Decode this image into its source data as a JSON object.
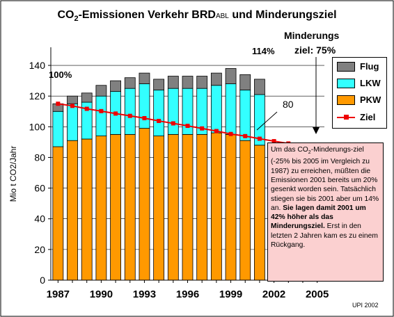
{
  "chart_data": {
    "type": "bar",
    "stacked": true,
    "title_pre": "CO",
    "title_sub": "2",
    "title_mid": "-Emissionen Verkehr BRD",
    "title_small": "ABL",
    "title_post": " und Minderungsziel",
    "ylabel": "Mio t CO2/Jahr",
    "ylim": [
      0,
      150
    ],
    "yticks": [
      "0",
      "20",
      "40",
      "60",
      "80",
      "100",
      "120",
      "140"
    ],
    "xticks": [
      "1987",
      "1990",
      "1993",
      "1996",
      "1999",
      "2002",
      "2005"
    ],
    "categories": [
      "1987",
      "1988",
      "1989",
      "1990",
      "1991",
      "1992",
      "1993",
      "1994",
      "1995",
      "1996",
      "1997",
      "1998",
      "1999",
      "2000",
      "2001"
    ],
    "series": [
      {
        "name": "PKW",
        "color": "#ff9900",
        "values": [
          87,
          91,
          92,
          94,
          95,
          95,
          99,
          94,
          95,
          95,
          95,
          96,
          95,
          91,
          88
        ]
      },
      {
        "name": "LKW",
        "color": "#33ffff",
        "values": [
          23,
          24,
          24,
          26,
          28,
          30,
          29,
          30,
          30,
          30,
          30,
          31,
          33,
          33,
          33
        ]
      },
      {
        "name": "Flug",
        "color": "#808080",
        "values": [
          5,
          5,
          6,
          7,
          7,
          7,
          7,
          7,
          8,
          8,
          8,
          8,
          10,
          10,
          10
        ]
      }
    ],
    "target": {
      "name": "Ziel",
      "color": "#ee0000",
      "x": [
        "1987",
        "1988",
        "1989",
        "1990",
        "1991",
        "1992",
        "1993",
        "1994",
        "1995",
        "1996",
        "1997",
        "1998",
        "1999",
        "2000",
        "2001",
        "2002",
        "2003",
        "2004",
        "2005"
      ],
      "values": [
        115,
        113.6,
        111.7,
        110.2,
        108.6,
        107.1,
        105.6,
        103.8,
        102.2,
        100.6,
        98.9,
        97.2,
        95.3,
        93.9,
        92.2,
        90.6,
        89.1,
        87.5,
        86.3
      ]
    },
    "legend_order": [
      "Flug",
      "LKW",
      "PKW",
      "Ziel"
    ],
    "legend_position": "right",
    "gridlines": "horizontal",
    "annotations": {
      "pct100": "100%",
      "pct114": "114%",
      "minderungs": "Minderungs",
      "ziel75": "ziel:  75%",
      "eighty": "80",
      "credit": "UPI 2002"
    }
  },
  "note": {
    "p1": "Um das CO",
    "p1_sub": "2",
    "p2": "-Minderungs-ziel (-25% bis 2005 im Vergleich zu 1987) zu erreichen, müßten die Emissionen 2001 bereits um 20% gesenkt worden sein. Tatsächlich stiegen sie bis 2001 aber um 14% an. ",
    "bold": "Sie lagen damit 2001 um 42% höher als das Minderungsziel.",
    "p3": " Erst in den letzten 2 Jahren kam es zu einem Rückgang."
  }
}
